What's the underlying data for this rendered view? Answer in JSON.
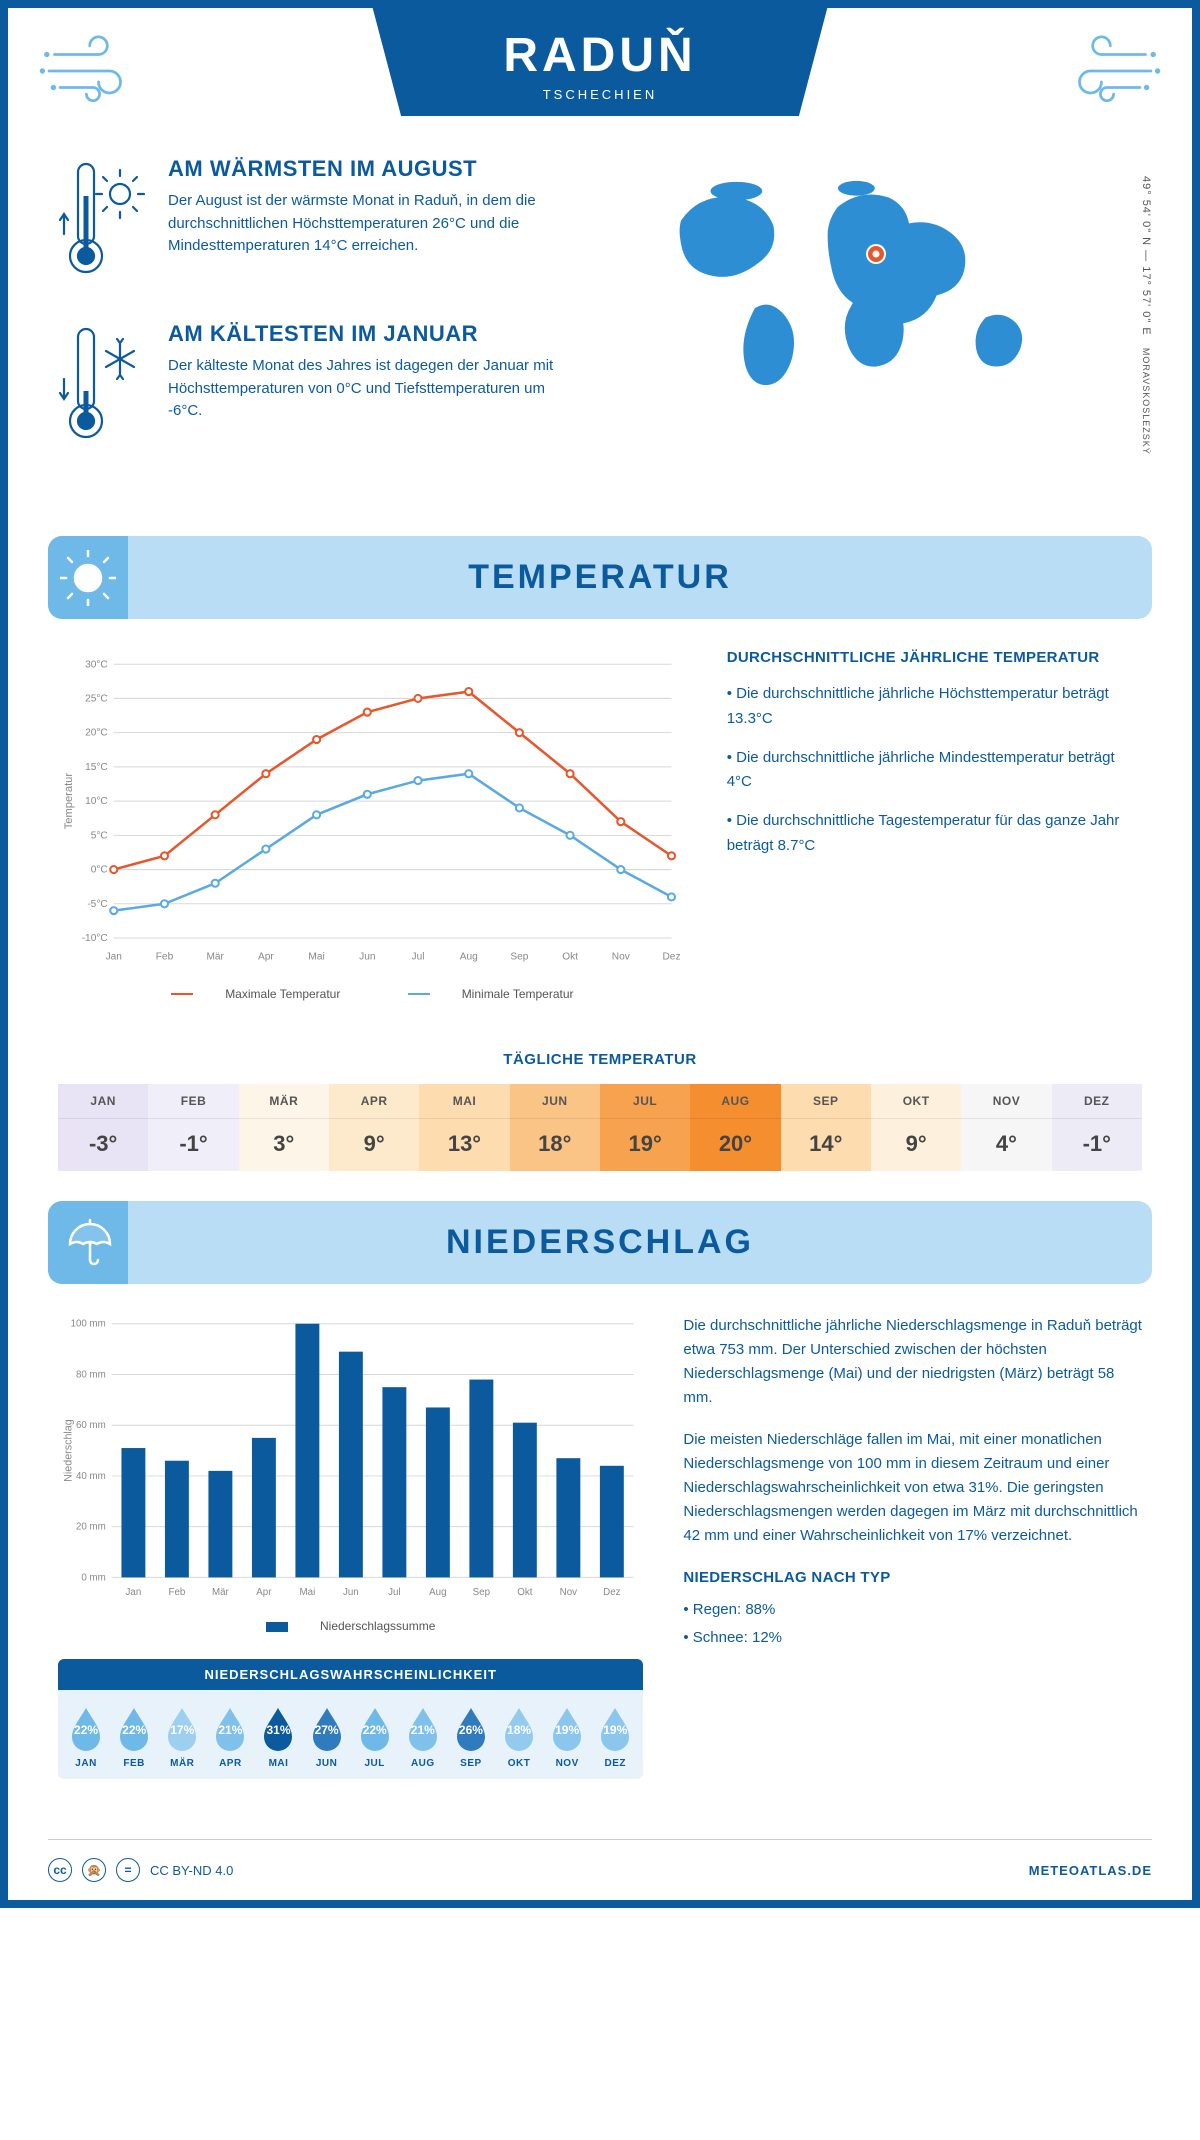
{
  "header": {
    "city": "RADUŇ",
    "country": "TSCHECHIEN"
  },
  "coords": "49° 54' 0\" N — 17° 57' 0\" E",
  "region": "MORAVSKOSLEZSKÝ",
  "facts": {
    "warm": {
      "title": "AM WÄRMSTEN IM AUGUST",
      "text": "Der August ist der wärmste Monat in Raduň, in dem die durchschnittlichen Höchsttemperaturen 26°C und die Mindesttemperaturen 14°C erreichen."
    },
    "cold": {
      "title": "AM KÄLTESTEN IM JANUAR",
      "text": "Der kälteste Monat des Jahres ist dagegen der Januar mit Höchsttemperaturen von 0°C und Tiefsttemperaturen um -6°C."
    }
  },
  "temp_section": {
    "title": "TEMPERATUR",
    "info_title": "DURCHSCHNITTLICHE JÄHRLICHE TEMPERATUR",
    "bullet1": "• Die durchschnittliche jährliche Höchsttemperatur beträgt 13.3°C",
    "bullet2": "• Die durchschnittliche jährliche Mindesttemperatur beträgt 4°C",
    "bullet3": "• Die durchschnittliche Tagestemperatur für das ganze Jahr beträgt 8.7°C",
    "legend_max": "Maximale Temperatur",
    "legend_min": "Minimale Temperatur",
    "ylabel": "Temperatur"
  },
  "temp_chart": {
    "type": "line",
    "months": [
      "Jan",
      "Feb",
      "Mär",
      "Apr",
      "Mai",
      "Jun",
      "Jul",
      "Aug",
      "Sep",
      "Okt",
      "Nov",
      "Dez"
    ],
    "max_series": [
      0,
      2,
      8,
      14,
      19,
      23,
      25,
      26,
      20,
      14,
      7,
      2
    ],
    "min_series": [
      -6,
      -5,
      -2,
      3,
      8,
      11,
      13,
      14,
      9,
      5,
      0,
      -4
    ],
    "max_color": "#e8562b",
    "min_color": "#5aa9e0",
    "ylim": [
      -10,
      30
    ],
    "yticks": [
      -10,
      -5,
      0,
      5,
      10,
      15,
      20,
      25,
      30
    ],
    "ytick_labels": [
      "-10°C",
      "-5°C",
      "0°C",
      "5°C",
      "10°C",
      "15°C",
      "20°C",
      "25°C",
      "30°C"
    ],
    "grid_color": "#d8d8d8",
    "bg": "#ffffff"
  },
  "daily": {
    "title": "TÄGLICHE TEMPERATUR",
    "months": [
      "JAN",
      "FEB",
      "MÄR",
      "APR",
      "MAI",
      "JUN",
      "JUL",
      "AUG",
      "SEP",
      "OKT",
      "NOV",
      "DEZ"
    ],
    "values": [
      "-3°",
      "-1°",
      "3°",
      "9°",
      "13°",
      "18°",
      "19°",
      "20°",
      "14°",
      "9°",
      "4°",
      "-1°"
    ],
    "colors": [
      "#e8e4f5",
      "#f0eef8",
      "#fdf5e8",
      "#fde9cc",
      "#fddcb0",
      "#fbc487",
      "#f7a24e",
      "#f58e2e",
      "#fddcb0",
      "#fdf0dd",
      "#f6f6f6",
      "#ecebf6"
    ]
  },
  "precip_section": {
    "title": "NIEDERSCHLAG",
    "para1": "Die durchschnittliche jährliche Niederschlagsmenge in Raduň beträgt etwa 753 mm. Der Unterschied zwischen der höchsten Niederschlagsmenge (Mai) und der niedrigsten (März) beträgt 58 mm.",
    "para2": "Die meisten Niederschläge fallen im Mai, mit einer monatlichen Niederschlagsmenge von 100 mm in diesem Zeitraum und einer Niederschlagswahrscheinlichkeit von etwa 31%. Die geringsten Niederschlagsmengen werden dagegen im März mit durchschnittlich 42 mm und einer Wahrscheinlichkeit von 17% verzeichnet.",
    "type_title": "NIEDERSCHLAG NACH TYP",
    "type_rain": "• Regen: 88%",
    "type_snow": "• Schnee: 12%",
    "ylabel": "Niederschlag",
    "legend": "Niederschlagssumme"
  },
  "precip_chart": {
    "type": "bar",
    "months": [
      "Jan",
      "Feb",
      "Mär",
      "Apr",
      "Mai",
      "Jun",
      "Jul",
      "Aug",
      "Sep",
      "Okt",
      "Nov",
      "Dez"
    ],
    "values": [
      51,
      46,
      42,
      55,
      100,
      89,
      75,
      67,
      78,
      61,
      47,
      44
    ],
    "bar_color": "#0c5a9e",
    "ylim": [
      0,
      100
    ],
    "yticks": [
      0,
      20,
      40,
      60,
      80,
      100
    ],
    "ytick_labels": [
      "0 mm",
      "20 mm",
      "40 mm",
      "60 mm",
      "80 mm",
      "100 mm"
    ],
    "grid_color": "#d8d8d8"
  },
  "prob": {
    "title": "NIEDERSCHLAGSWAHRSCHEINLICHKEIT",
    "months": [
      "JAN",
      "FEB",
      "MÄR",
      "APR",
      "MAI",
      "JUN",
      "JUL",
      "AUG",
      "SEP",
      "OKT",
      "NOV",
      "DEZ"
    ],
    "pct": [
      "22%",
      "22%",
      "17%",
      "21%",
      "31%",
      "27%",
      "22%",
      "21%",
      "26%",
      "18%",
      "19%",
      "19%"
    ],
    "colors": [
      "#6fb9e8",
      "#6fb9e8",
      "#9dcff0",
      "#7fc1ea",
      "#0c5a9e",
      "#2f7bbd",
      "#6fb9e8",
      "#7fc1ea",
      "#2f7bbd",
      "#93caee",
      "#8bc6ec",
      "#8bc6ec"
    ]
  },
  "footer": {
    "license": "CC BY-ND 4.0",
    "site": "METEOATLAS.DE"
  },
  "colors": {
    "primary": "#0c5a9e",
    "lightblue": "#b8ddf5",
    "midblue": "#6fb9e8",
    "mapfill": "#2e8ed4"
  }
}
